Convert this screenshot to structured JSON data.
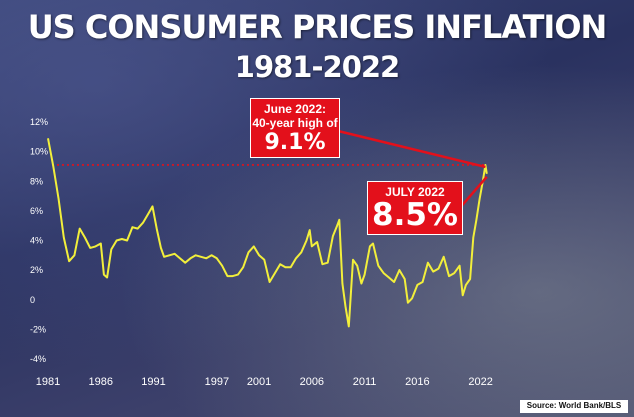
{
  "header": {
    "title": "US CONSUMER PRICES INFLATION",
    "subtitle": "1981-2022"
  },
  "annotations": {
    "june_line1": "June 2022:",
    "june_line2": "40-year high of",
    "june_value": "9.1%",
    "july_label": "JULY 2022",
    "july_value": "8.5%"
  },
  "source": "Source: World Bank/BLS",
  "colors": {
    "line": "#f2ef3b",
    "annotation_red": "#e3101b",
    "reference_line": "#e3101b",
    "text": "#ffffff"
  },
  "chart_data": {
    "type": "line",
    "title": "US CONSUMER PRICES INFLATION",
    "subtitle": "1981-2022",
    "xlabel": "",
    "ylabel": "",
    "x_ticks": [
      "1981",
      "1986",
      "1991",
      "1997",
      "2001",
      "2006",
      "2011",
      "2016",
      "2022"
    ],
    "y_ticks": [
      "12%",
      "10%",
      "8%",
      "6%",
      "4%",
      "2%",
      "0",
      "-2%",
      "-4%"
    ],
    "ylim": [
      -4,
      12
    ],
    "xlim": [
      1981,
      2022.6
    ],
    "grid": false,
    "reference_line": {
      "y": 9.1,
      "style": "dotted",
      "color": "#e3101b"
    },
    "series": [
      {
        "x": [
          1981.0,
          1981.5,
          1982.0,
          1982.5,
          1983.0,
          1983.5,
          1984.0,
          1984.5,
          1985.0,
          1985.5,
          1986.0,
          1986.3,
          1986.6,
          1987.0,
          1987.5,
          1988.0,
          1988.5,
          1989.0,
          1989.5,
          1990.0,
          1990.5,
          1990.9,
          1991.3,
          1991.7,
          1992.0,
          1992.5,
          1993.0,
          1993.5,
          1994.0,
          1994.5,
          1995.0,
          1995.5,
          1996.0,
          1996.5,
          1997.0,
          1997.5,
          1998.0,
          1998.5,
          1999.0,
          1999.5,
          2000.0,
          2000.5,
          2001.0,
          2001.5,
          2002.0,
          2002.5,
          2003.0,
          2003.5,
          2004.0,
          2004.5,
          2005.0,
          2005.5,
          2005.8,
          2006.0,
          2006.5,
          2007.0,
          2007.5,
          2008.0,
          2008.4,
          2008.6,
          2008.9,
          2009.2,
          2009.5,
          2009.9,
          2010.3,
          2010.7,
          2011.0,
          2011.5,
          2011.8,
          2012.3,
          2012.8,
          2013.3,
          2013.8,
          2014.3,
          2014.8,
          2015.1,
          2015.5,
          2016.0,
          2016.5,
          2017.0,
          2017.5,
          2018.0,
          2018.5,
          2019.0,
          2019.5,
          2020.0,
          2020.3,
          2020.6,
          2021.0,
          2021.3,
          2021.6,
          2021.9,
          2022.2,
          2022.45,
          2022.58
        ],
        "values": [
          10.9,
          9.0,
          6.8,
          4.2,
          2.6,
          3.0,
          4.8,
          4.2,
          3.5,
          3.6,
          3.8,
          1.7,
          1.5,
          3.4,
          4.0,
          4.1,
          4.0,
          4.9,
          4.8,
          5.2,
          5.8,
          6.3,
          4.8,
          3.5,
          2.9,
          3.0,
          3.1,
          2.8,
          2.5,
          2.8,
          3.0,
          2.9,
          2.8,
          3.0,
          2.8,
          2.3,
          1.6,
          1.6,
          1.7,
          2.2,
          3.2,
          3.6,
          3.0,
          2.7,
          1.2,
          1.8,
          2.4,
          2.2,
          2.2,
          2.8,
          3.2,
          4.0,
          4.7,
          3.6,
          3.9,
          2.4,
          2.5,
          4.3,
          5.0,
          5.4,
          1.1,
          -0.5,
          -1.8,
          2.7,
          2.3,
          1.1,
          1.7,
          3.6,
          3.8,
          2.3,
          1.8,
          1.5,
          1.2,
          2.0,
          1.4,
          -0.2,
          0.1,
          1.0,
          1.2,
          2.5,
          1.9,
          2.1,
          2.9,
          1.6,
          1.8,
          2.3,
          0.3,
          1.0,
          1.4,
          4.2,
          5.4,
          6.8,
          8.0,
          9.1,
          8.5
        ]
      }
    ]
  }
}
